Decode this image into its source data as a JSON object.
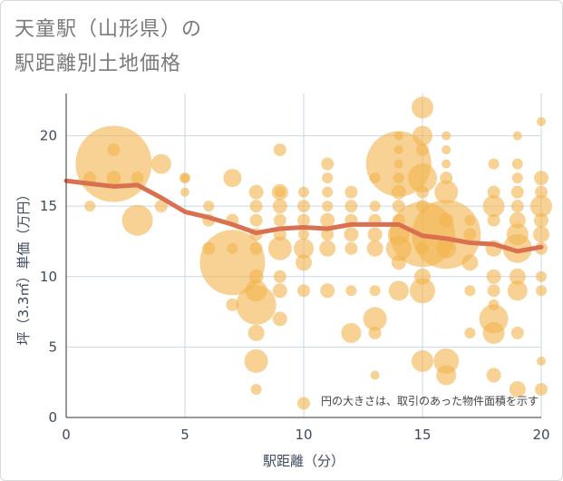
{
  "title_line1": "天童駅（山形県）の",
  "title_line2": "駅距離別土地価格",
  "chart_data": {
    "type": "scatter",
    "xlabel": "駅距離（分）",
    "ylabel": "坪（3.3㎡）単価（万円）",
    "xlim": [
      0,
      20
    ],
    "ylim": [
      0,
      23
    ],
    "x_ticks": [
      "0",
      "5",
      "10",
      "15",
      "20"
    ],
    "y_ticks": [
      "0",
      "5",
      "10",
      "15",
      "20"
    ],
    "x_tick_values": [
      0,
      5,
      10,
      15,
      20
    ],
    "y_tick_values": [
      0,
      5,
      10,
      15,
      20
    ],
    "grid": true,
    "note": "円の大きさは、取引のあった物件面積を示す",
    "bubble_color": "#f1b44c",
    "line_color": "#d9704f",
    "trend_line": {
      "x": [
        0,
        1,
        2,
        3,
        4,
        5,
        6,
        7,
        8,
        9,
        10,
        11,
        12,
        13,
        14,
        15,
        16,
        17,
        18,
        19,
        20
      ],
      "y": [
        16.8,
        16.6,
        16.4,
        16.5,
        15.6,
        14.6,
        14.2,
        13.7,
        13.1,
        13.4,
        13.5,
        13.4,
        13.7,
        13.7,
        13.7,
        12.9,
        12.7,
        12.4,
        12.3,
        11.8,
        12.1
      ]
    },
    "bubbles": [
      {
        "x": 1,
        "y": 17,
        "r": 7
      },
      {
        "x": 1,
        "y": 15,
        "r": 6
      },
      {
        "x": 2,
        "y": 18,
        "r": 42
      },
      {
        "x": 2,
        "y": 19,
        "r": 7
      },
      {
        "x": 2,
        "y": 17,
        "r": 8
      },
      {
        "x": 3,
        "y": 14,
        "r": 17
      },
      {
        "x": 3,
        "y": 17,
        "r": 7
      },
      {
        "x": 4,
        "y": 18,
        "r": 11
      },
      {
        "x": 4,
        "y": 15,
        "r": 7
      },
      {
        "x": 5,
        "y": 17,
        "r": 6
      },
      {
        "x": 5,
        "y": 16,
        "r": 5
      },
      {
        "x": 5,
        "y": 17,
        "r": 5
      },
      {
        "x": 6,
        "y": 15,
        "r": 6
      },
      {
        "x": 6,
        "y": 14,
        "r": 7
      },
      {
        "x": 6,
        "y": 12,
        "r": 7
      },
      {
        "x": 7,
        "y": 11,
        "r": 36
      },
      {
        "x": 7,
        "y": 17,
        "r": 10
      },
      {
        "x": 7,
        "y": 14,
        "r": 7
      },
      {
        "x": 7,
        "y": 12,
        "r": 6
      },
      {
        "x": 7,
        "y": 8,
        "r": 7
      },
      {
        "x": 8,
        "y": 8,
        "r": 22
      },
      {
        "x": 8,
        "y": 9,
        "r": 12
      },
      {
        "x": 8,
        "y": 4,
        "r": 13
      },
      {
        "x": 8,
        "y": 6,
        "r": 9
      },
      {
        "x": 8,
        "y": 10,
        "r": 8
      },
      {
        "x": 8,
        "y": 12,
        "r": 7
      },
      {
        "x": 8,
        "y": 13,
        "r": 7
      },
      {
        "x": 8,
        "y": 14,
        "r": 7
      },
      {
        "x": 8,
        "y": 15,
        "r": 7
      },
      {
        "x": 8,
        "y": 16,
        "r": 8
      },
      {
        "x": 8,
        "y": 2,
        "r": 6
      },
      {
        "x": 9,
        "y": 12,
        "r": 13
      },
      {
        "x": 9,
        "y": 16,
        "r": 9
      },
      {
        "x": 9,
        "y": 15,
        "r": 8
      },
      {
        "x": 9,
        "y": 14,
        "r": 7
      },
      {
        "x": 9,
        "y": 13,
        "r": 7
      },
      {
        "x": 9,
        "y": 10,
        "r": 7
      },
      {
        "x": 9,
        "y": 9,
        "r": 8
      },
      {
        "x": 9,
        "y": 7,
        "r": 8
      },
      {
        "x": 9,
        "y": 19,
        "r": 7
      },
      {
        "x": 9,
        "y": 16,
        "r": 6
      },
      {
        "x": 10,
        "y": 12,
        "r": 11
      },
      {
        "x": 10,
        "y": 11,
        "r": 9
      },
      {
        "x": 10,
        "y": 14,
        "r": 7
      },
      {
        "x": 10,
        "y": 15,
        "r": 7
      },
      {
        "x": 10,
        "y": 16,
        "r": 6
      },
      {
        "x": 10,
        "y": 13,
        "r": 6
      },
      {
        "x": 10,
        "y": 9,
        "r": 7
      },
      {
        "x": 10,
        "y": 1,
        "r": 7
      },
      {
        "x": 11,
        "y": 12,
        "r": 9
      },
      {
        "x": 11,
        "y": 14,
        "r": 8
      },
      {
        "x": 11,
        "y": 13,
        "r": 7
      },
      {
        "x": 11,
        "y": 16,
        "r": 6
      },
      {
        "x": 11,
        "y": 17,
        "r": 6
      },
      {
        "x": 11,
        "y": 18,
        "r": 7
      },
      {
        "x": 11,
        "y": 9,
        "r": 8
      },
      {
        "x": 11,
        "y": 15,
        "r": 6
      },
      {
        "x": 12,
        "y": 6,
        "r": 11
      },
      {
        "x": 12,
        "y": 13,
        "r": 8
      },
      {
        "x": 12,
        "y": 14,
        "r": 7
      },
      {
        "x": 12,
        "y": 15,
        "r": 7
      },
      {
        "x": 12,
        "y": 16,
        "r": 7
      },
      {
        "x": 12,
        "y": 12,
        "r": 7
      },
      {
        "x": 12,
        "y": 9,
        "r": 6
      },
      {
        "x": 13,
        "y": 7,
        "r": 13
      },
      {
        "x": 13,
        "y": 12,
        "r": 9
      },
      {
        "x": 13,
        "y": 13,
        "r": 8
      },
      {
        "x": 13,
        "y": 14,
        "r": 7
      },
      {
        "x": 13,
        "y": 15,
        "r": 6
      },
      {
        "x": 13,
        "y": 17,
        "r": 6
      },
      {
        "x": 13,
        "y": 6,
        "r": 7
      },
      {
        "x": 13,
        "y": 3,
        "r": 5
      },
      {
        "x": 13,
        "y": 9,
        "r": 6
      },
      {
        "x": 14,
        "y": 18,
        "r": 36
      },
      {
        "x": 14,
        "y": 12,
        "r": 14
      },
      {
        "x": 14,
        "y": 13,
        "r": 12
      },
      {
        "x": 14,
        "y": 9,
        "r": 11
      },
      {
        "x": 14,
        "y": 16,
        "r": 8
      },
      {
        "x": 14,
        "y": 15,
        "r": 7
      },
      {
        "x": 14,
        "y": 14,
        "r": 7
      },
      {
        "x": 14,
        "y": 11,
        "r": 8
      },
      {
        "x": 14,
        "y": 17,
        "r": 6
      },
      {
        "x": 14,
        "y": 19,
        "r": 5
      },
      {
        "x": 14,
        "y": 20,
        "r": 5
      },
      {
        "x": 14,
        "y": 18,
        "r": 5
      },
      {
        "x": 15,
        "y": 13,
        "r": 36
      },
      {
        "x": 15,
        "y": 17,
        "r": 16
      },
      {
        "x": 15,
        "y": 9,
        "r": 14
      },
      {
        "x": 15,
        "y": 22,
        "r": 12
      },
      {
        "x": 15,
        "y": 20,
        "r": 11
      },
      {
        "x": 15,
        "y": 4,
        "r": 12
      },
      {
        "x": 15,
        "y": 10,
        "r": 9
      },
      {
        "x": 15,
        "y": 15,
        "r": 7
      },
      {
        "x": 15,
        "y": 12,
        "r": 7
      },
      {
        "x": 15,
        "y": 19,
        "r": 7
      },
      {
        "x": 15,
        "y": 16,
        "r": 7
      },
      {
        "x": 16,
        "y": 13,
        "r": 38
      },
      {
        "x": 16,
        "y": 16,
        "r": 13
      },
      {
        "x": 16,
        "y": 4,
        "r": 14
      },
      {
        "x": 16,
        "y": 3,
        "r": 11
      },
      {
        "x": 16,
        "y": 12,
        "r": 11
      },
      {
        "x": 16,
        "y": 14,
        "r": 8
      },
      {
        "x": 16,
        "y": 17,
        "r": 7
      },
      {
        "x": 16,
        "y": 19,
        "r": 5
      },
      {
        "x": 16,
        "y": 20,
        "r": 5
      },
      {
        "x": 16,
        "y": 18,
        "r": 5
      },
      {
        "x": 17,
        "y": 11,
        "r": 9
      },
      {
        "x": 17,
        "y": 13,
        "r": 7
      },
      {
        "x": 17,
        "y": 14,
        "r": 6
      },
      {
        "x": 17,
        "y": 9,
        "r": 6
      },
      {
        "x": 17,
        "y": 6,
        "r": 6
      },
      {
        "x": 18,
        "y": 7,
        "r": 16
      },
      {
        "x": 18,
        "y": 15,
        "r": 12
      },
      {
        "x": 18,
        "y": 6,
        "r": 12
      },
      {
        "x": 18,
        "y": 12,
        "r": 9
      },
      {
        "x": 18,
        "y": 10,
        "r": 8
      },
      {
        "x": 18,
        "y": 9,
        "r": 7
      },
      {
        "x": 18,
        "y": 14,
        "r": 7
      },
      {
        "x": 18,
        "y": 16,
        "r": 7
      },
      {
        "x": 18,
        "y": 18,
        "r": 6
      },
      {
        "x": 18,
        "y": 3,
        "r": 8
      },
      {
        "x": 18,
        "y": 8,
        "r": 6
      },
      {
        "x": 19,
        "y": 12,
        "r": 16
      },
      {
        "x": 19,
        "y": 13,
        "r": 12
      },
      {
        "x": 19,
        "y": 9,
        "r": 11
      },
      {
        "x": 19,
        "y": 10,
        "r": 9
      },
      {
        "x": 19,
        "y": 14,
        "r": 9
      },
      {
        "x": 19,
        "y": 15,
        "r": 7
      },
      {
        "x": 19,
        "y": 16,
        "r": 7
      },
      {
        "x": 19,
        "y": 17,
        "r": 6
      },
      {
        "x": 19,
        "y": 18,
        "r": 6
      },
      {
        "x": 19,
        "y": 2,
        "r": 9
      },
      {
        "x": 19,
        "y": 6,
        "r": 7
      },
      {
        "x": 19,
        "y": 20,
        "r": 5
      },
      {
        "x": 20,
        "y": 15,
        "r": 12
      },
      {
        "x": 20,
        "y": 13,
        "r": 9
      },
      {
        "x": 20,
        "y": 14,
        "r": 8
      },
      {
        "x": 20,
        "y": 17,
        "r": 8
      },
      {
        "x": 20,
        "y": 12,
        "r": 7
      },
      {
        "x": 20,
        "y": 16,
        "r": 7
      },
      {
        "x": 20,
        "y": 10,
        "r": 6
      },
      {
        "x": 20,
        "y": 9,
        "r": 6
      },
      {
        "x": 20,
        "y": 2,
        "r": 7
      },
      {
        "x": 20,
        "y": 4,
        "r": 5
      },
      {
        "x": 20,
        "y": 21,
        "r": 5
      }
    ]
  }
}
